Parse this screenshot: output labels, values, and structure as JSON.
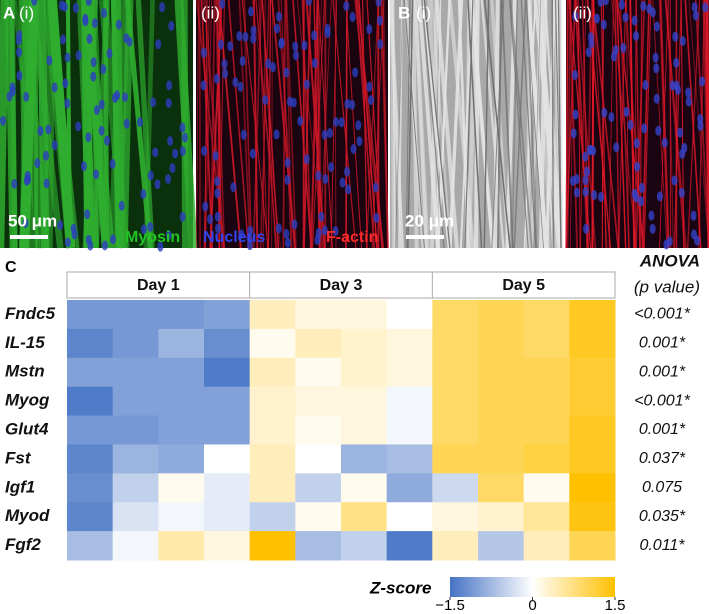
{
  "figure": {
    "panel_a": {
      "label": "A",
      "left": "(i)",
      "right": "(ii)",
      "scale_bar": "50 μm",
      "stains": [
        "Myosin",
        "Nucleus",
        "F-actin"
      ]
    },
    "panel_b": {
      "label": "B",
      "left": "(i)",
      "right": "(ii)",
      "scale_bar": "20 μm"
    },
    "heatmap": {
      "label": "C",
      "groups": [
        "Day 1",
        "Day 3",
        "Day 5"
      ],
      "rows": [
        "Fndc5",
        "IL-15",
        "Mstn",
        "Myog",
        "Glut4",
        "Fst",
        "Igf1",
        "Myod",
        "Fgf2"
      ],
      "values": [
        [
          -1.1,
          -1.1,
          -1.1,
          -1.0,
          0.4,
          0.2,
          0.2,
          0.0,
          0.9,
          1.0,
          0.9,
          1.3
        ],
        [
          -1.3,
          -1.1,
          -0.8,
          -1.2,
          0.1,
          0.4,
          0.3,
          0.2,
          0.9,
          1.0,
          0.9,
          1.3
        ],
        [
          -1.0,
          -1.0,
          -1.0,
          -1.4,
          0.4,
          0.1,
          0.3,
          0.2,
          0.9,
          1.0,
          1.0,
          1.2
        ],
        [
          -1.4,
          -1.0,
          -1.0,
          -1.0,
          0.3,
          0.2,
          0.2,
          -0.1,
          0.9,
          1.0,
          1.0,
          1.2
        ],
        [
          -1.1,
          -1.1,
          -1.0,
          -1.0,
          0.3,
          0.1,
          0.2,
          -0.1,
          0.9,
          1.0,
          1.0,
          1.3
        ],
        [
          -1.3,
          -0.8,
          -0.9,
          0.0,
          0.4,
          0.0,
          -0.8,
          -0.7,
          1.0,
          1.0,
          1.1,
          1.3
        ],
        [
          -1.2,
          -0.5,
          0.1,
          -0.2,
          0.4,
          -0.5,
          0.1,
          -0.9,
          -0.4,
          0.9,
          0.1,
          1.5
        ],
        [
          -1.3,
          -0.3,
          -0.1,
          -0.2,
          -0.5,
          0.1,
          0.7,
          0.0,
          0.2,
          0.3,
          0.6,
          1.4
        ],
        [
          -0.7,
          -0.1,
          0.5,
          0.2,
          1.5,
          -0.7,
          -0.5,
          -1.4,
          0.4,
          -0.6,
          0.4,
          1.0
        ]
      ],
      "p_title": "ANOVA",
      "p_subtitle": "(p value)",
      "p_values": [
        "<0.001*",
        "0.001*",
        "0.001*",
        "<0.001*",
        "0.001*",
        "0.037*",
        "0.075",
        "0.035*",
        "0.011*"
      ],
      "colorbar": {
        "title": "Z-score",
        "lim": [
          -1.5,
          1.5
        ],
        "ticks": [
          {
            "value": -1.5,
            "label": "−1.5"
          },
          0,
          1.5
        ],
        "colors": [
          "#4472c4",
          "#ffffff",
          "#ffc000"
        ]
      }
    }
  }
}
